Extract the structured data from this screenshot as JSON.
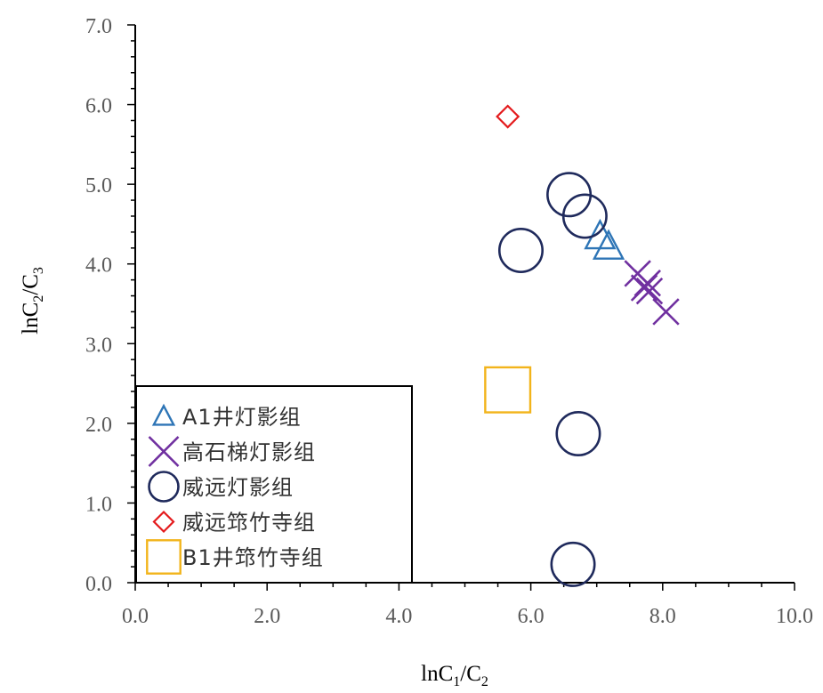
{
  "chart_data": {
    "type": "scatter",
    "xlabel": {
      "base": "lnC",
      "sub1": "1",
      "mid": "/C",
      "sub2": "2"
    },
    "ylabel": {
      "base": "lnC",
      "sub1": "2",
      "mid": "/C",
      "sub2": "3"
    },
    "xlim": [
      0,
      10
    ],
    "ylim": [
      0,
      7
    ],
    "xticks": [
      "0.0",
      "2.0",
      "4.0",
      "6.0",
      "8.0",
      "10.0"
    ],
    "yticks": [
      "0.0",
      "1.0",
      "2.0",
      "3.0",
      "4.0",
      "5.0",
      "6.0",
      "7.0"
    ],
    "grid": false,
    "legend_position": "bottom-left",
    "series": [
      {
        "name": "A1井灯影组",
        "marker": "triangle",
        "color": "#2E75B6",
        "points": [
          [
            7.05,
            4.35
          ],
          [
            7.18,
            4.22
          ]
        ]
      },
      {
        "name": "高石梯灯影组",
        "marker": "x",
        "color": "#7030A0",
        "points": [
          [
            7.62,
            3.88
          ],
          [
            7.72,
            3.7
          ],
          [
            7.77,
            3.76
          ],
          [
            7.8,
            3.66
          ],
          [
            8.05,
            3.4
          ]
        ]
      },
      {
        "name": "威远灯影组",
        "marker": "circle",
        "color": "#1F2A5C",
        "points": [
          [
            6.58,
            4.87
          ],
          [
            6.82,
            4.6
          ],
          [
            5.85,
            4.17
          ],
          [
            6.72,
            1.87
          ],
          [
            6.64,
            0.23
          ]
        ]
      },
      {
        "name": "威远筇竹寺组",
        "marker": "diamond",
        "color": "#E41A1C",
        "points": [
          [
            5.65,
            5.85
          ]
        ]
      },
      {
        "name": "B1井筇竹寺组",
        "marker": "square",
        "color": "#F2B41B",
        "points": [
          [
            5.65,
            2.42
          ]
        ]
      }
    ]
  }
}
